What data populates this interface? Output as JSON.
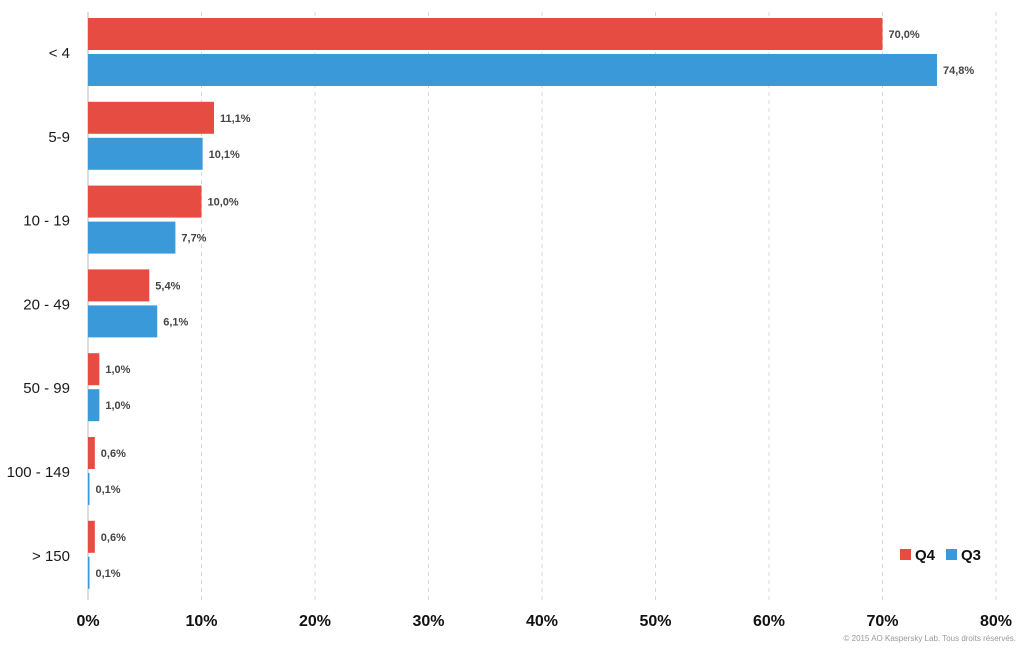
{
  "chart_data": {
    "type": "bar",
    "orientation": "horizontal",
    "categories": [
      "< 4",
      "5-9",
      "10 - 19",
      "20 - 49",
      "50 - 99",
      "100 - 149",
      "> 150"
    ],
    "series": [
      {
        "name": "Q4",
        "color": "#e74c43",
        "values": [
          70.0,
          11.1,
          10.0,
          5.4,
          1.0,
          0.6,
          0.6
        ],
        "labels": [
          "70,0%",
          "11,1%",
          "10,0%",
          "5,4%",
          "1,0%",
          "0,6%",
          "0,6%"
        ]
      },
      {
        "name": "Q3",
        "color": "#3a9ad9",
        "values": [
          74.8,
          10.1,
          7.7,
          6.1,
          1.0,
          0.1,
          0.1
        ],
        "labels": [
          "74,8%",
          "10,1%",
          "7,7%",
          "6,1%",
          "1,0%",
          "0,1%",
          "0,1%"
        ]
      }
    ],
    "xlim": [
      0,
      80
    ],
    "xticks": [
      0,
      10,
      20,
      30,
      40,
      50,
      60,
      70,
      80
    ],
    "xtick_labels": [
      "0%",
      "10%",
      "20%",
      "30%",
      "40%",
      "50%",
      "60%",
      "70%",
      "80%"
    ],
    "grid": "vertical dashed",
    "legend_position": "bottom-right"
  },
  "copyright": "© 2015 AO Kaspersky Lab. Tous droits réservés."
}
